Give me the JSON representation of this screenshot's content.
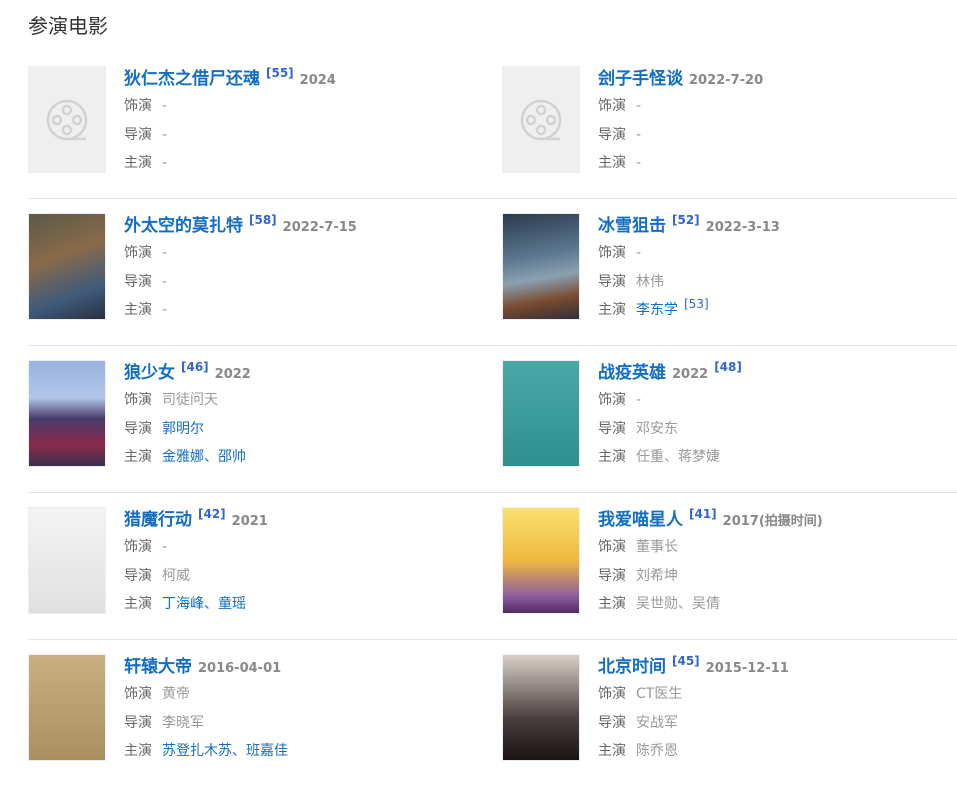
{
  "heading": "参演电影",
  "labels": {
    "role": "饰演",
    "director": "导演",
    "cast": "主演"
  },
  "colors": {
    "link": "#136ec2",
    "ref": "#3366cc",
    "date": "#888888"
  },
  "movies": [
    {
      "title": "狄仁杰之借尸还魂",
      "ref": "[55]",
      "date": "2024",
      "date_first": false,
      "role": "-",
      "director": "-",
      "cast": "-",
      "cast_link": false,
      "poster": "placeholder-film-icon"
    },
    {
      "title": "刽子手怪谈",
      "ref": "",
      "date": "2022-7-20",
      "date_first": false,
      "role": "-",
      "director": "-",
      "cast": "-",
      "cast_link": false,
      "poster": "placeholder-film-icon"
    },
    {
      "title": "外太空的莫扎特",
      "ref": "[58]",
      "date": "2022-7-15",
      "date_first": false,
      "role": "-",
      "director": "-",
      "cast": "-",
      "cast_link": false,
      "poster": "poster-mozart"
    },
    {
      "title": "冰雪狙击",
      "ref": "[52]",
      "date": "2022-3-13",
      "date_first": false,
      "role": "-",
      "director": "林伟",
      "cast": "李东学",
      "cast_link": true,
      "cast_ref": "[53]",
      "poster": "poster-ice"
    },
    {
      "title": "狼少女",
      "ref": "[46]",
      "date": "2022",
      "date_first": false,
      "role": "司徒问天",
      "director": "郭明尔",
      "director_link": true,
      "cast": "金雅娜、邵帅",
      "cast_link": true,
      "poster": "poster-wolf"
    },
    {
      "title": "战疫英雄",
      "ref": "[48]",
      "date": "2022",
      "date_first": true,
      "role": "-",
      "director": "邓安东",
      "cast": "任重、蒋梦婕",
      "cast_link": false,
      "poster": "poster-hero"
    },
    {
      "title": "猎魔行动",
      "ref": "[42]",
      "date": "2021",
      "date_first": false,
      "role": "-",
      "director": "柯威",
      "cast": "丁海峰、童瑶",
      "cast_link": true,
      "poster": "poster-hunt"
    },
    {
      "title": "我爱喵星人",
      "ref": "[41]",
      "date": "2017(拍摄时间)",
      "date_first": false,
      "role": "董事长",
      "director": "刘希坤",
      "cast": "吴世勋、吴倩",
      "cast_link": false,
      "poster": "poster-cat"
    },
    {
      "title": "轩辕大帝",
      "ref": "",
      "date": "2016-04-01",
      "date_first": false,
      "role": "黄帝",
      "director": "李晓军",
      "cast": "苏登扎木苏、班嘉佳",
      "cast_link": true,
      "poster": "poster-xuanyuan"
    },
    {
      "title": "北京时间",
      "ref": "[45]",
      "date": "2015-12-11",
      "date_first": false,
      "role": "CT医生",
      "director": "安战军",
      "cast": "陈乔恩",
      "cast_link": false,
      "poster": "poster-beijing"
    }
  ]
}
